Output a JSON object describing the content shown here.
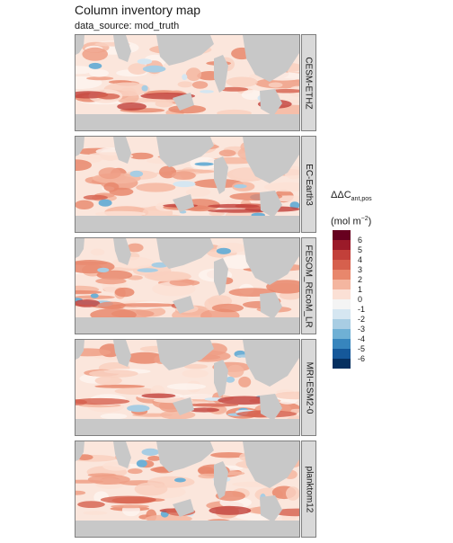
{
  "title": "Column inventory map",
  "subtitle": "data_source: mod_truth",
  "chart_data": {
    "type": "heatmap",
    "title": "Column inventory map",
    "subtitle": "data_source: mod_truth",
    "facets": [
      "CESM-ETHZ",
      "EC-Earth3",
      "FESOM_REcoM_LR",
      "MRI-ESM2-0",
      "planktom12"
    ],
    "legend": {
      "title_base": "ΔC",
      "title_sub": "ant,pos",
      "title_prefix": "Δ",
      "unit_base": "(mol m",
      "unit_sup": "−2",
      "unit_end": ")",
      "ticks": [
        "6",
        "5",
        "4",
        "3",
        "2",
        "1",
        "0",
        "-1",
        "-2",
        "-3",
        "-4",
        "-5",
        "-6"
      ],
      "colors": [
        "#67001f",
        "#9b1a29",
        "#c2403a",
        "#d6604d",
        "#e8876c",
        "#f4b6a0",
        "#fbe0d5",
        "#f4f4f4",
        "#d5e6f1",
        "#a8cde3",
        "#6fb0d5",
        "#3785bd",
        "#15589a",
        "#053061"
      ]
    },
    "land_color": "#c8c8c8",
    "grid": false
  }
}
